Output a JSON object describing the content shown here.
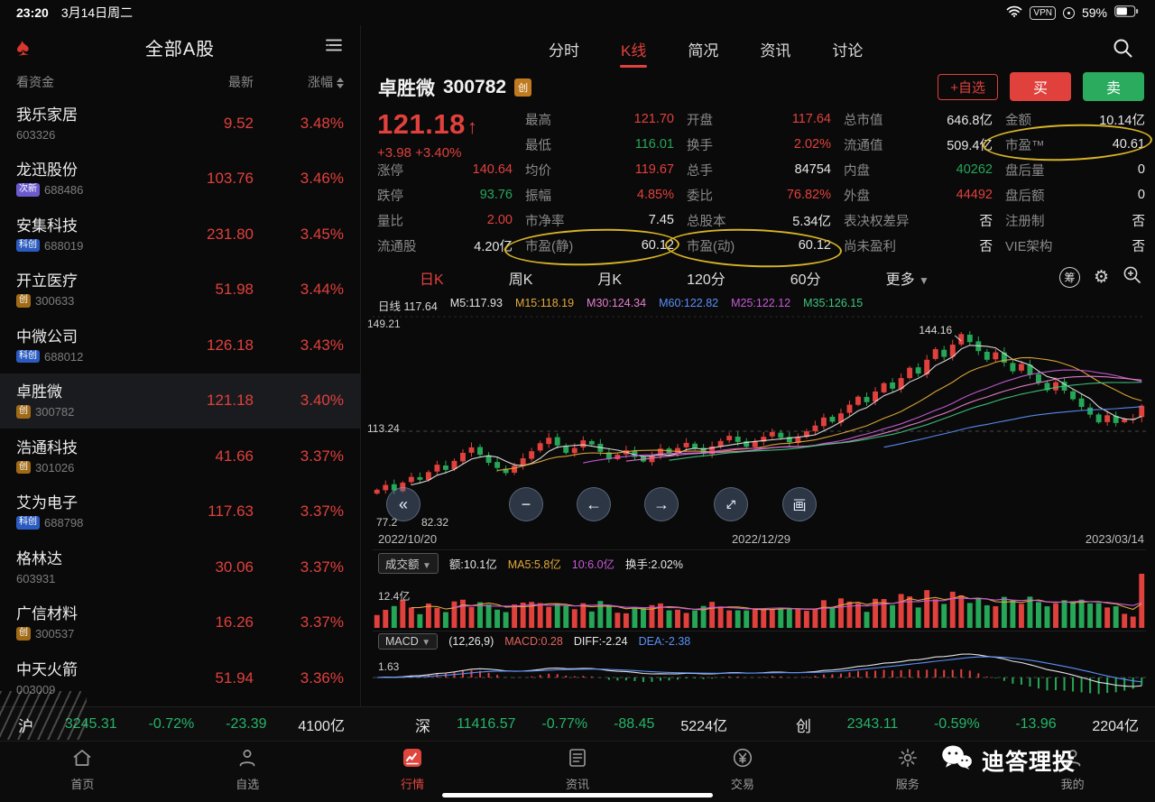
{
  "status_bar": {
    "time": "23:20",
    "date": "3月14日周二",
    "vpn_label": "VPN",
    "battery_pct": "59%"
  },
  "sidebar": {
    "title": "全部A股",
    "columns": {
      "funds": "看资金",
      "latest": "最新",
      "change": "涨幅"
    }
  },
  "watchlist": [
    {
      "name": "我乐家居",
      "code": "603326",
      "badge": "",
      "price": "9.52",
      "pct": "3.48%",
      "selected": false
    },
    {
      "name": "龙迅股份",
      "code": "688486",
      "badge": "次新",
      "price": "103.76",
      "pct": "3.46%",
      "selected": false
    },
    {
      "name": "安集科技",
      "code": "688019",
      "badge": "科创",
      "price": "231.80",
      "pct": "3.45%",
      "selected": false
    },
    {
      "name": "开立医疗",
      "code": "300633",
      "badge": "创",
      "price": "51.98",
      "pct": "3.44%",
      "selected": false
    },
    {
      "name": "中微公司",
      "code": "688012",
      "badge": "科创",
      "price": "126.18",
      "pct": "3.43%",
      "selected": false
    },
    {
      "name": "卓胜微",
      "code": "300782",
      "badge": "创",
      "price": "121.18",
      "pct": "3.40%",
      "selected": true
    },
    {
      "name": "浩通科技",
      "code": "301026",
      "badge": "创",
      "price": "41.66",
      "pct": "3.37%",
      "selected": false
    },
    {
      "name": "艾为电子",
      "code": "688798",
      "badge": "科创",
      "price": "117.63",
      "pct": "3.37%",
      "selected": false
    },
    {
      "name": "格林达",
      "code": "603931",
      "badge": "",
      "price": "30.06",
      "pct": "3.37%",
      "selected": false
    },
    {
      "name": "广信材料",
      "code": "300537",
      "badge": "创",
      "price": "16.26",
      "pct": "3.37%",
      "selected": false
    },
    {
      "name": "中天火箭",
      "code": "003009",
      "badge": "",
      "price": "51.94",
      "pct": "3.36%",
      "selected": false
    }
  ],
  "tabs": [
    {
      "label": "分时",
      "active": false
    },
    {
      "label": "K线",
      "active": true
    },
    {
      "label": "简况",
      "active": false
    },
    {
      "label": "资讯",
      "active": false
    },
    {
      "label": "讨论",
      "active": false
    }
  ],
  "stock": {
    "name": "卓胜微",
    "code": "300782",
    "badge": "创",
    "price": "121.18",
    "arrow": "↑",
    "change": "+3.98",
    "change_pct": "+3.40%"
  },
  "actions": {
    "add": "+自选",
    "buy": "买",
    "sell": "卖"
  },
  "stats": [
    {
      "r": 1,
      "c": 2,
      "l": "最高",
      "v": "121.70",
      "cl": "red"
    },
    {
      "r": 1,
      "c": 3,
      "l": "开盘",
      "v": "117.64",
      "cl": "red"
    },
    {
      "r": 1,
      "c": 4,
      "l": "总市值",
      "v": "646.8亿",
      "cl": "white"
    },
    {
      "r": 1,
      "c": 5,
      "l": "金额",
      "v": "10.14亿",
      "cl": "white"
    },
    {
      "r": 2,
      "c": 2,
      "l": "最低",
      "v": "116.01",
      "cl": "green"
    },
    {
      "r": 2,
      "c": 3,
      "l": "换手",
      "v": "2.02%",
      "cl": "red"
    },
    {
      "r": 2,
      "c": 4,
      "l": "流通值",
      "v": "509.4亿",
      "cl": "white"
    },
    {
      "r": 2,
      "c": 5,
      "l": "市盈™",
      "v": "40.61",
      "cl": "white"
    },
    {
      "r": 3,
      "c": 1,
      "l": "涨停",
      "v": "140.64",
      "cl": "red"
    },
    {
      "r": 3,
      "c": 2,
      "l": "均价",
      "v": "119.67",
      "cl": "red"
    },
    {
      "r": 3,
      "c": 3,
      "l": "总手",
      "v": "84754",
      "cl": "white"
    },
    {
      "r": 3,
      "c": 4,
      "l": "内盘",
      "v": "40262",
      "cl": "green"
    },
    {
      "r": 3,
      "c": 5,
      "l": "盘后量",
      "v": "0",
      "cl": "white"
    },
    {
      "r": 4,
      "c": 1,
      "l": "跌停",
      "v": "93.76",
      "cl": "green"
    },
    {
      "r": 4,
      "c": 2,
      "l": "振幅",
      "v": "4.85%",
      "cl": "red"
    },
    {
      "r": 4,
      "c": 3,
      "l": "委比",
      "v": "76.82%",
      "cl": "red"
    },
    {
      "r": 4,
      "c": 4,
      "l": "外盘",
      "v": "44492",
      "cl": "red"
    },
    {
      "r": 4,
      "c": 5,
      "l": "盘后额",
      "v": "0",
      "cl": "white"
    },
    {
      "r": 5,
      "c": 1,
      "l": "量比",
      "v": "2.00",
      "cl": "red"
    },
    {
      "r": 5,
      "c": 2,
      "l": "市净率",
      "v": "7.45",
      "cl": "white"
    },
    {
      "r": 5,
      "c": 3,
      "l": "总股本",
      "v": "5.34亿",
      "cl": "white"
    },
    {
      "r": 5,
      "c": 4,
      "l": "表决权差异",
      "v": "否",
      "cl": "white"
    },
    {
      "r": 5,
      "c": 5,
      "l": "注册制",
      "v": "否",
      "cl": "white"
    },
    {
      "r": 6,
      "c": 1,
      "l": "流通股",
      "v": "4.20亿",
      "cl": "white"
    },
    {
      "r": 6,
      "c": 2,
      "l": "市盈(静)",
      "v": "60.12",
      "cl": "white"
    },
    {
      "r": 6,
      "c": 3,
      "l": "市盈(动)",
      "v": "60.12",
      "cl": "white"
    },
    {
      "r": 6,
      "c": 4,
      "l": "尚未盈利",
      "v": "否",
      "cl": "white"
    },
    {
      "r": 6,
      "c": 5,
      "l": "VIE架构",
      "v": "否",
      "cl": "white"
    }
  ],
  "kline": {
    "periods": [
      {
        "label": "日K",
        "active": true
      },
      {
        "label": "周K",
        "active": false
      },
      {
        "label": "月K",
        "active": false
      },
      {
        "label": "120分",
        "active": false
      },
      {
        "label": "60分",
        "active": false
      }
    ],
    "more": "更多",
    "chip_tool": "筹",
    "draw_tool": "画",
    "legend": [
      {
        "t": "日线 117.64",
        "c": "#d8d8d8"
      },
      {
        "t": "M5:117.93",
        "c": "#e3e3e3"
      },
      {
        "t": "M15:118.19",
        "c": "#e2a93b"
      },
      {
        "t": "M30:124.34",
        "c": "#e87fd0"
      },
      {
        "t": "M60:122.82",
        "c": "#5b8ff9"
      },
      {
        "t": "M25:122.12",
        "c": "#c75bd7"
      },
      {
        "t": "M35:126.15",
        "c": "#3fc57f"
      }
    ],
    "y_top": "149.21",
    "y_mid": "113.24",
    "y_low_left": "77.2",
    "y_bottom": "82.32",
    "peak_label": "144.16",
    "dates": [
      "2022/10/20",
      "2022/12/29",
      "2023/03/14"
    ]
  },
  "volume": {
    "selector": "成交额",
    "amount": "额:10.1亿",
    "ma5": "MA5:5.8亿",
    "ma10": "10:6.0亿",
    "turnover": "换手:2.02%",
    "y_label": "12.4亿"
  },
  "macd": {
    "selector": "MACD",
    "params": "(12,26,9)",
    "macd": "MACD:0.28",
    "diff": "DIFF:-2.24",
    "dea": "DEA:-2.38",
    "y_label": "1.63"
  },
  "chart_data": {
    "type": "candlestick",
    "y_range": [
      82.32,
      149.21
    ],
    "peak": 144.16,
    "peak_index": 68,
    "last_open": 117.64,
    "last_high": 121.7,
    "last_low": 116.01,
    "last_close": 121.18,
    "closes": [
      95.0,
      96.5,
      94.8,
      97.2,
      99.0,
      98.1,
      100.5,
      102.8,
      101.2,
      104.0,
      106.5,
      108.2,
      105.9,
      103.4,
      101.8,
      100.2,
      102.5,
      104.8,
      107.0,
      109.5,
      111.2,
      108.8,
      106.5,
      108.0,
      110.4,
      109.1,
      106.8,
      104.5,
      105.9,
      107.3,
      105.2,
      103.8,
      105.5,
      107.8,
      106.4,
      108.0,
      109.6,
      107.9,
      106.2,
      108.5,
      110.2,
      111.8,
      109.9,
      108.4,
      110.0,
      111.5,
      113.0,
      111.2,
      109.8,
      111.4,
      113.2,
      115.0,
      117.5,
      116.2,
      118.8,
      121.5,
      124.0,
      122.3,
      125.6,
      128.2,
      126.5,
      129.8,
      133.0,
      131.2,
      135.5,
      138.8,
      136.4,
      140.2,
      143.5,
      141.0,
      138.2,
      135.5,
      137.8,
      134.6,
      131.9,
      134.2,
      130.8,
      128.4,
      126.0,
      128.5,
      125.9,
      123.2,
      120.8,
      118.4,
      116.0,
      118.2,
      115.8,
      117.0,
      117.2,
      121.18
    ],
    "ma_colors": {
      "5": "#e3e3e3",
      "15": "#e2a93b",
      "25": "#c75bd7",
      "30": "#e87fd0",
      "35": "#3fc57f",
      "60": "#5b8ff9"
    }
  },
  "indices": [
    {
      "name": "沪",
      "value": "3245.31",
      "pct": "-0.72%",
      "chg": "-23.39",
      "amount": "4100亿"
    },
    {
      "name": "深",
      "value": "11416.57",
      "pct": "-0.77%",
      "chg": "-88.45",
      "amount": "5224亿"
    },
    {
      "name": "创",
      "value": "2343.11",
      "pct": "-0.59%",
      "chg": "-13.96",
      "amount": "2204亿"
    }
  ],
  "nav": [
    {
      "label": "首页",
      "icon": "home",
      "active": false
    },
    {
      "label": "自选",
      "icon": "person",
      "active": false
    },
    {
      "label": "行情",
      "icon": "quote",
      "active": true
    },
    {
      "label": "资讯",
      "icon": "news",
      "active": false
    },
    {
      "label": "交易",
      "icon": "trade",
      "active": false
    },
    {
      "label": "服务",
      "icon": "service",
      "active": false
    },
    {
      "label": "我的",
      "icon": "person",
      "active": false
    }
  ],
  "overlay_buttons": [
    {
      "icon": "collapse-left",
      "glyph": "«"
    },
    {
      "icon": "zoom-out",
      "glyph": "−"
    },
    {
      "icon": "arrow-left",
      "glyph": "←"
    },
    {
      "icon": "arrow-right",
      "glyph": "→"
    },
    {
      "icon": "expand",
      "glyph": ""
    },
    {
      "icon": "draw",
      "glyph": "画"
    }
  ],
  "watermark": {
    "text": "迪答理投"
  }
}
